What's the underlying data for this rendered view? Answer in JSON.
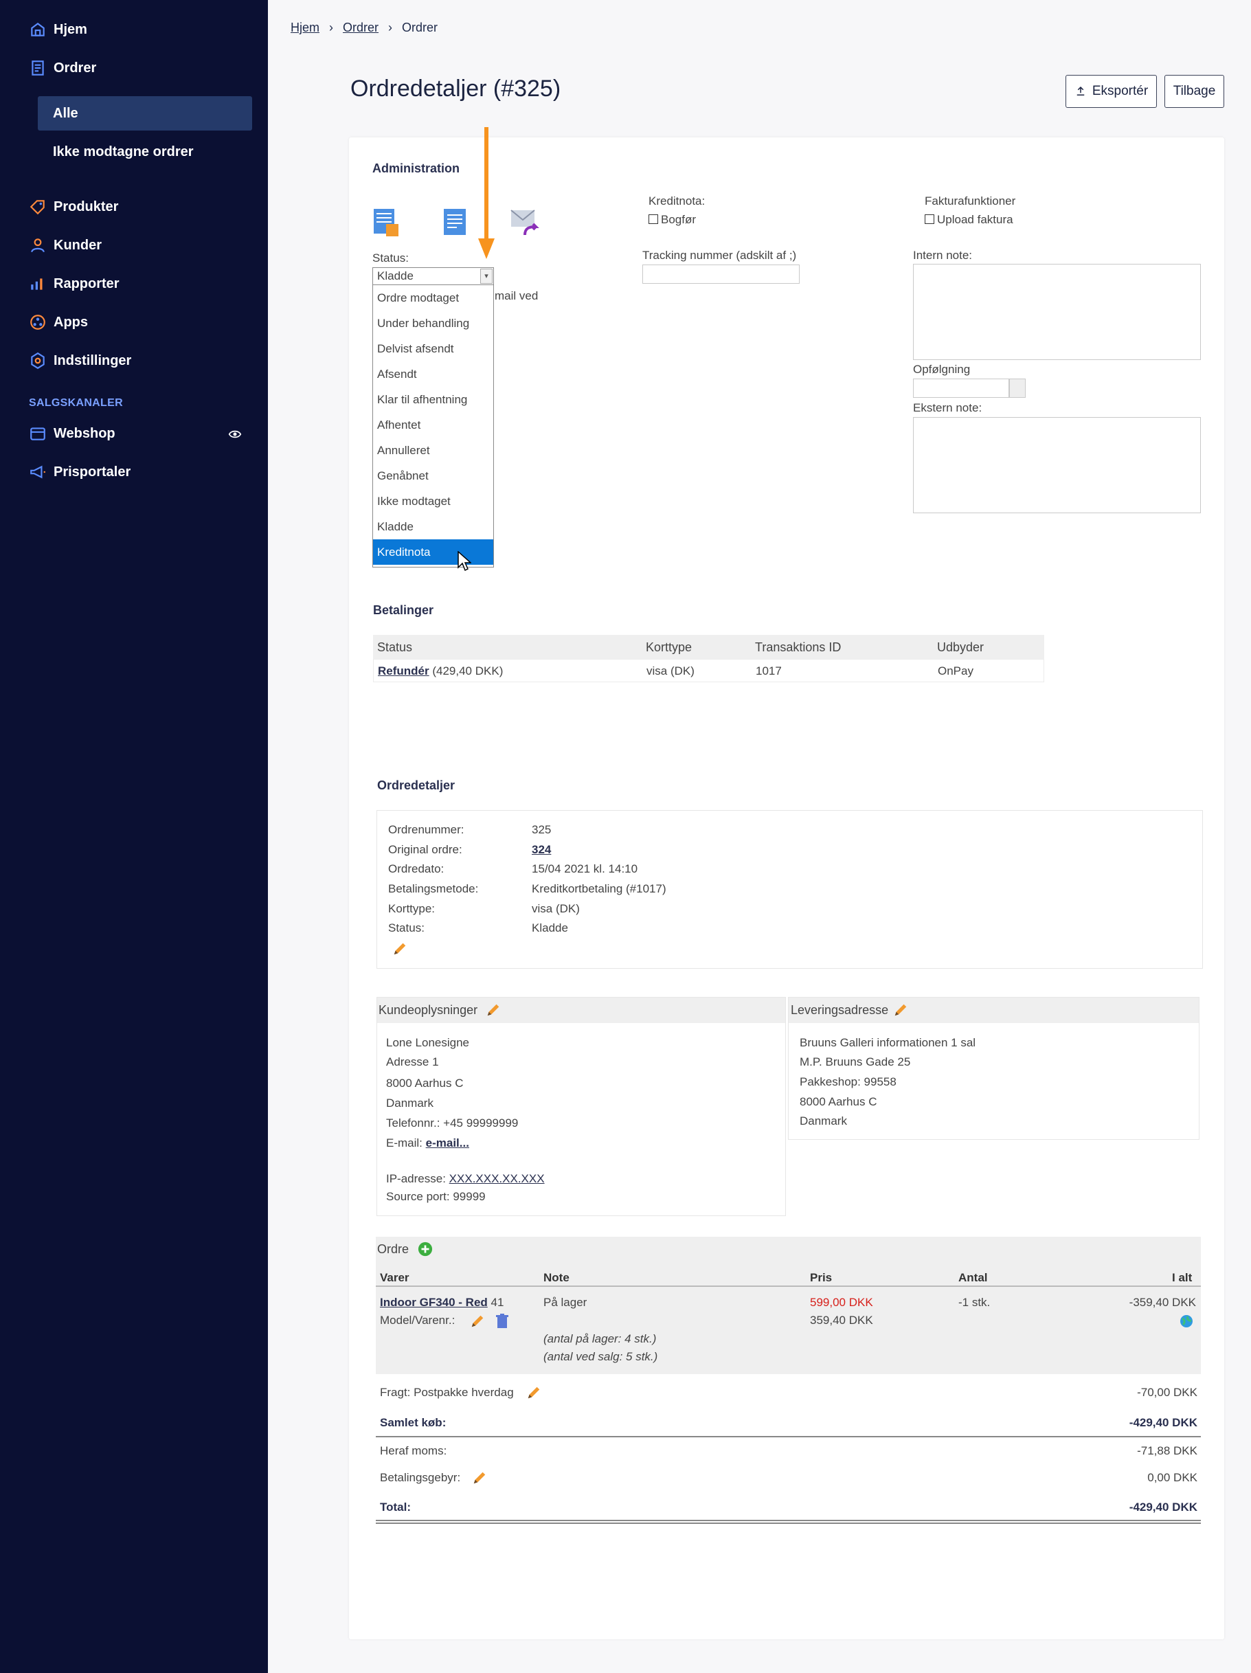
{
  "sidebar": {
    "items": [
      {
        "label": "Hjem",
        "icon": "home-icon"
      },
      {
        "label": "Ordrer",
        "icon": "orders-icon"
      },
      {
        "label": "Produkter",
        "icon": "tag-icon"
      },
      {
        "label": "Kunder",
        "icon": "user-icon"
      },
      {
        "label": "Rapporter",
        "icon": "chart-icon"
      },
      {
        "label": "Apps",
        "icon": "apps-icon"
      },
      {
        "label": "Indstillinger",
        "icon": "gear-icon"
      }
    ],
    "sub_items": [
      "Alle",
      "Ikke modtagne ordrer"
    ],
    "section_label": "SALGSKANALER",
    "channels": [
      {
        "label": "Webshop",
        "icon": "store-icon"
      },
      {
        "label": "Prisportaler",
        "icon": "megaphone-icon"
      }
    ]
  },
  "breadcrumb": [
    "Hjem",
    "Ordrer",
    "Ordrer"
  ],
  "header": {
    "title": "Ordredetaljer (#325)",
    "export_label": "Eksportér",
    "back_label": "Tilbage"
  },
  "admin": {
    "title": "Administration",
    "status_label": "Status:",
    "status_value": "Kladde",
    "status_options": [
      "Ordre modtaget",
      "Under behandling",
      "Delvist afsendt",
      "Afsendt",
      "Klar til afhentning",
      "Afhentet",
      "Annulleret",
      "Genåbnet",
      "Ikke modtaget",
      "Kladde",
      "Kreditnota"
    ],
    "hidden_text": "mail ved",
    "kreditnota_label": "Kreditnota:",
    "bogfoer_label": "Bogfør",
    "tracking_label": "Tracking nummer (adskilt af ;)",
    "faktura_label": "Fakturafunktioner",
    "upload_label": "Upload faktura",
    "intern_note_label": "Intern note:",
    "opfoelgning_label": "Opfølgning",
    "ekstern_note_label": "Ekstern note:"
  },
  "payments": {
    "title": "Betalinger",
    "headers": [
      "Status",
      "Korttype",
      "Transaktions ID",
      "Udbyder"
    ],
    "row": {
      "status_link": "Refundér",
      "status_amount": "(429,40 DKK)",
      "card": "visa (DK)",
      "txn": "1017",
      "provider": "OnPay"
    }
  },
  "order_details": {
    "title": "Ordredetaljer",
    "rows": [
      {
        "label": "Ordrenummer:",
        "value": "325"
      },
      {
        "label": "Original ordre:",
        "value": "324"
      },
      {
        "label": "Ordredato:",
        "value": "15/04 2021 kl. 14:10"
      },
      {
        "label": "Betalingsmetode:",
        "value": "Kreditkortbetaling (#1017)"
      },
      {
        "label": "Korttype:",
        "value": "visa (DK)"
      },
      {
        "label": "Status:",
        "value": "Kladde"
      }
    ]
  },
  "customer": {
    "title": "Kundeoplysninger",
    "lines": [
      "Lone Lonesigne",
      "Adresse 1",
      "8000 Aarhus C",
      "Danmark",
      "Telefonnr.: +45 99999999"
    ],
    "email_label": "E-mail:",
    "email_link": "e-mail...",
    "ip_label": "IP-adresse:",
    "ip_value": "XXX.XXX.XX.XXX",
    "source_port": "Source port: 99999"
  },
  "delivery": {
    "title": "Leveringsadresse",
    "lines": [
      "Bruuns Galleri informationen 1 sal",
      "M.P. Bruuns Gade 25",
      "Pakkeshop: 99558",
      "8000 Aarhus C",
      "Danmark"
    ]
  },
  "order": {
    "title": "Ordre",
    "headers": {
      "varer": "Varer",
      "note": "Note",
      "pris": "Pris",
      "antal": "Antal",
      "ialt": "I alt"
    },
    "item": {
      "name": "Indoor GF340 - Red",
      "name_suffix": "41",
      "model_label": "Model/Varenr.:",
      "note": "På lager",
      "stock_note_1": "(antal på lager: 4 stk.)",
      "stock_note_2": "(antal ved salg: 5 stk.)",
      "price_original": "599,00 DKK",
      "price": "359,40 DKK",
      "qty": "-1 stk.",
      "total": "-359,40 DKK"
    },
    "freight_label": "Fragt: Postpakke hverdag",
    "freight_value": "-70,00 DKK",
    "samlet_label": "Samlet køb:",
    "samlet_value": "-429,40 DKK",
    "moms_label": "Heraf moms:",
    "moms_value": "-71,88 DKK",
    "fee_label": "Betalingsgebyr:",
    "fee_value": "0,00 DKK",
    "total_label": "Total:",
    "total_value": "-429,40 DKK"
  },
  "colors": {
    "sidebar": "#0b1033",
    "active": "#253a6a",
    "accent": "#0a78d7",
    "arrow": "#f7931e",
    "red": "#d6201b"
  }
}
